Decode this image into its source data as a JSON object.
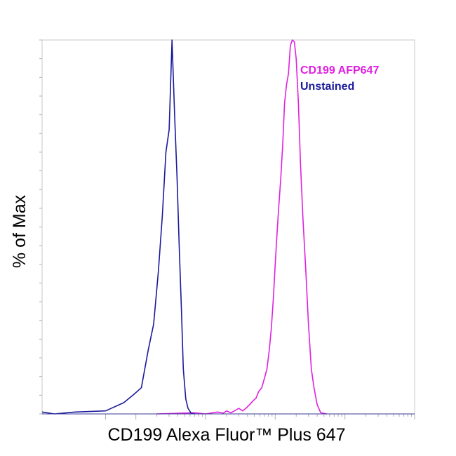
{
  "chart_data": {
    "type": "line",
    "title": "",
    "xlabel": "CD199 Alexa Fluor™ Plus 647",
    "ylabel": "% of Max",
    "x_scale": "log",
    "xlim": [
      -300,
      1000000
    ],
    "ylim": [
      0,
      100
    ],
    "grid": false,
    "legend_position": "top-right",
    "series": [
      {
        "name": "CD199 AFP647",
        "color": "#e020e0",
        "x": [
          200,
          700,
          1000,
          1500,
          1800,
          2000,
          2300,
          2600,
          3000,
          3400,
          3800,
          4300,
          4800,
          5300,
          5800,
          6400,
          7000,
          7600,
          8200,
          8800,
          9400,
          10000,
          10600,
          11200,
          12000,
          12800,
          13600,
          14500,
          15500,
          16500,
          17600,
          18800,
          20000,
          21500,
          23000,
          25000,
          27500,
          30000,
          33000,
          36000,
          40000,
          45000,
          55000
        ],
        "y": [
          0,
          0.3,
          0,
          0.5,
          0.2,
          0.8,
          0.3,
          0.8,
          1.5,
          0.8,
          1.5,
          2.5,
          3.5,
          4.2,
          6,
          7,
          9.5,
          12,
          17,
          23,
          31,
          40,
          48,
          55,
          63,
          72,
          83,
          88,
          91,
          98.5,
          100,
          99.5,
          95,
          83,
          67,
          52,
          38,
          24,
          12,
          7,
          2.5,
          0.3,
          0
        ]
      },
      {
        "name": "Unstained",
        "color": "#1a1a9c",
        "x": [
          -300,
          -200,
          -100,
          0,
          60,
          90,
          120,
          150,
          180,
          210,
          240,
          270,
          300,
          330,
          360,
          390,
          420,
          450,
          480,
          520,
          560,
          620,
          700
        ],
        "y": [
          0.5,
          0,
          0.5,
          0.8,
          3,
          5,
          7,
          17,
          24,
          38,
          53,
          70,
          76,
          100,
          80,
          63,
          44,
          28,
          12,
          4,
          1.5,
          0.2,
          0
        ]
      }
    ]
  }
}
